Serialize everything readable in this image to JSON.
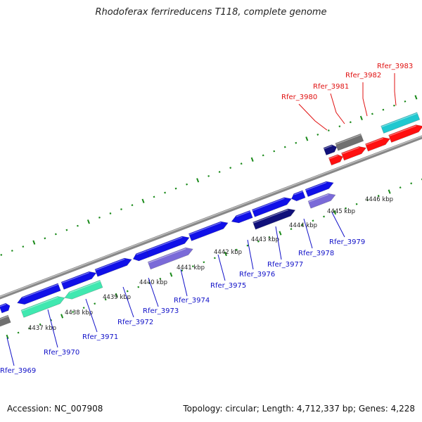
{
  "title": "Rhodoferax ferrireducens T118, complete genome",
  "accession": "Accession: NC_007908",
  "summary": "Topology: circular; Length: 4,712,337 bp; Genes: 4,228",
  "colors": {
    "backbone": "#8c8c8c",
    "tick": "#1a8a1a",
    "gene_blue": "#1010e8",
    "gene_purple": "#7a6ad8",
    "gene_navy": "#10107a",
    "gene_red": "#ff1010",
    "gene_gray": "#707070",
    "gene_cyan": "#20c8d0",
    "gene_teal": "#40e8b0",
    "label_blue": "#1010c8",
    "label_red": "#e01010"
  },
  "kbp_labels": [
    "4437 kbp",
    "4438 kbp",
    "4439 kbp",
    "4440 kbp",
    "4441 kbp",
    "4442 kbp",
    "4443 kbp",
    "4444 kbp",
    "4445 kbp",
    "4446 kbp"
  ],
  "gene_labels_blue": [
    "Rfer_3969",
    "Rfer_3970",
    "Rfer_3971",
    "Rfer_3972",
    "Rfer_3973",
    "Rfer_3974",
    "Rfer_3975",
    "Rfer_3976",
    "Rfer_3977",
    "Rfer_3978",
    "Rfer_3979"
  ],
  "gene_labels_red": [
    "Rfer_3980",
    "Rfer_3981",
    "Rfer_3982",
    "Rfer_3983"
  ]
}
